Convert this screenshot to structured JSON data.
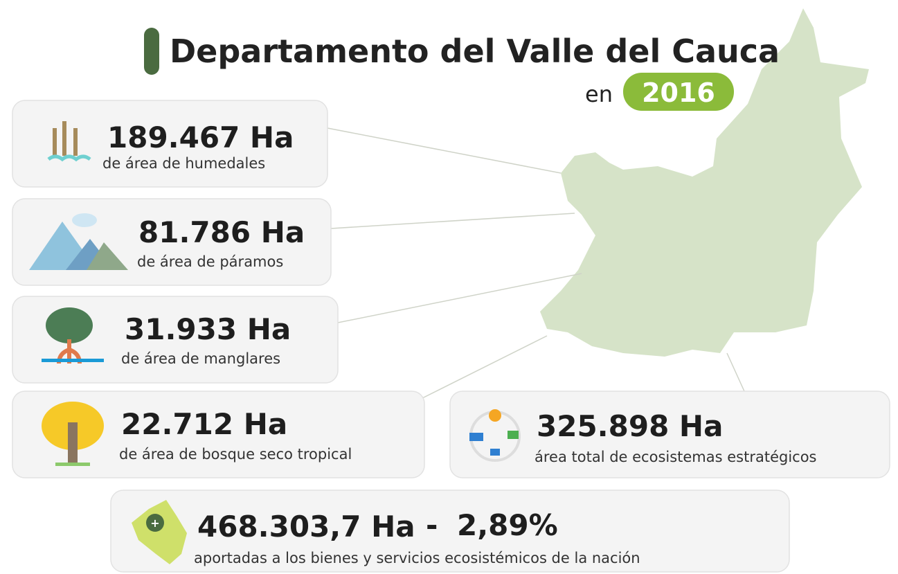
{
  "header": {
    "title": "Departamento del Valle del Cauca",
    "prefix": "en",
    "year": "2016"
  },
  "cards": [
    {
      "value": "189.467 Ha",
      "label": "de área de humedales"
    },
    {
      "value": "81.786 Ha",
      "label": "de área de páramos"
    },
    {
      "value": "31.933 Ha",
      "label": "de área de manglares"
    },
    {
      "value": "22.712 Ha",
      "label": "de área de bosque seco tropical"
    }
  ],
  "total": {
    "value": "325.898 Ha",
    "label": "área total de ecosistemas estratégicos"
  },
  "nation": {
    "value": "468.303,7 Ha",
    "separator": "-",
    "percent": "2,89%",
    "label": "aportadas a los bienes y servicios ecosistémicos de la nación"
  }
}
